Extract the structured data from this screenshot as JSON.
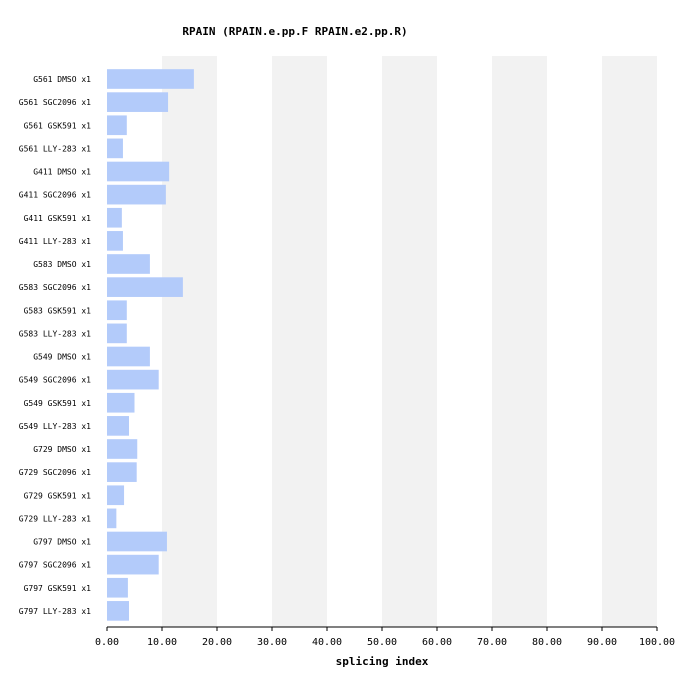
{
  "chart_data": {
    "type": "bar",
    "orientation": "horizontal",
    "title": "RPAIN (RPAIN.e.pp.F  RPAIN.e2.pp.R)",
    "xlabel": "splicing index",
    "ylabel": "",
    "xlim": [
      0,
      100
    ],
    "xticks": [
      "0.00",
      "10.00",
      "20.00",
      "30.00",
      "40.00",
      "50.00",
      "60.00",
      "70.00",
      "80.00",
      "90.00",
      "100.00"
    ],
    "grid": "alternating vertical bands",
    "categories": [
      "G561 DMSO x1",
      "G561 SGC2096 x1",
      "G561 GSK591 x1",
      "G561 LLY-283 x1",
      "G411 DMSO x1",
      "G411 SGC2096 x1",
      "G411 GSK591 x1",
      "G411 LLY-283 x1",
      "G583 DMSO x1",
      "G583 SGC2096 x1",
      "G583 GSK591 x1",
      "G583 LLY-283 x1",
      "G549 DMSO x1",
      "G549 SGC2096 x1",
      "G549 GSK591 x1",
      "G549 LLY-283 x1",
      "G729 DMSO x1",
      "G729 SGC2096 x1",
      "G729 GSK591 x1",
      "G729 LLY-283 x1",
      "G797 DMSO x1",
      "G797 SGC2096 x1",
      "G797 GSK591 x1",
      "G797 LLY-283 x1"
    ],
    "values": [
      15.8,
      11.1,
      3.6,
      2.9,
      11.3,
      10.7,
      2.7,
      2.9,
      7.8,
      13.8,
      3.6,
      3.6,
      7.8,
      9.4,
      5.0,
      4.0,
      5.5,
      5.4,
      3.1,
      1.7,
      10.9,
      9.4,
      3.8,
      4.0
    ],
    "bar_color": "#b3cbfa",
    "band_color": "#f2f2f2"
  }
}
